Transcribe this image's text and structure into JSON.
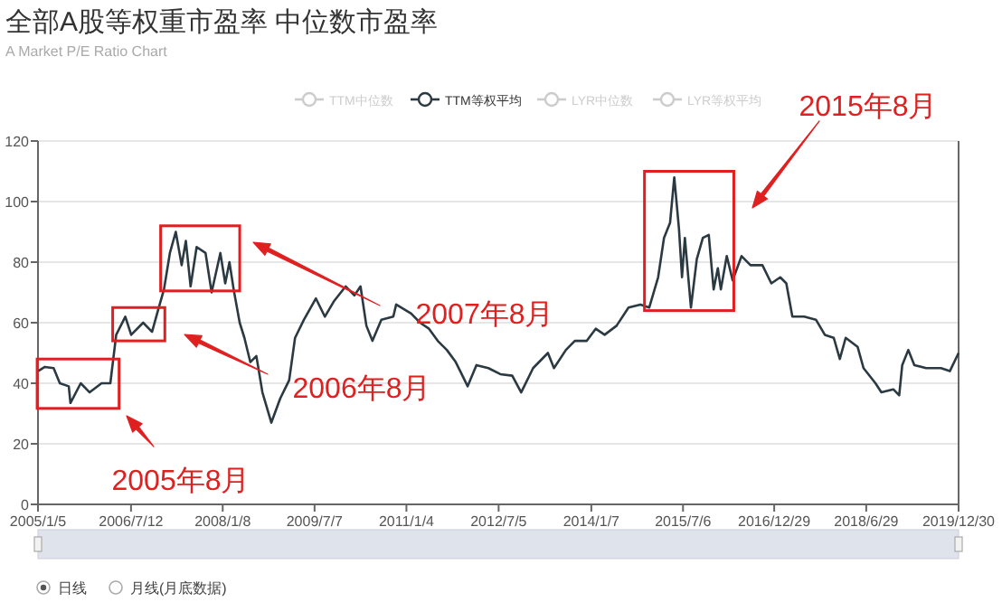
{
  "chart_data": {
    "type": "line",
    "title": "全部A股等权重市盈率 中位数市盈率",
    "subtitle": "A Market P/E Ratio Chart",
    "legend": "top",
    "marker": "none",
    "grid": "y",
    "xlim": [
      "2005-01-05",
      "2019-12-30"
    ],
    "xticks": [
      {
        "value": "2005-01-05",
        "label": "2005/1/5"
      },
      {
        "value": "2006-07-12",
        "label": "2006/7/12"
      },
      {
        "value": "2008-01-08",
        "label": "2008/1/8"
      },
      {
        "value": "2009-07-07",
        "label": "2009/7/7"
      },
      {
        "value": "2011-01-04",
        "label": "2011/1/4"
      },
      {
        "value": "2012-07-05",
        "label": "2012/7/5"
      },
      {
        "value": "2014-01-07",
        "label": "2014/1/7"
      },
      {
        "value": "2015-07-06",
        "label": "2015/7/6"
      },
      {
        "value": "2016-12-29",
        "label": "2016/12/29"
      },
      {
        "value": "2018-06-29",
        "label": "2018/6/29"
      },
      {
        "value": "2019-12-30",
        "label": "2019/12/30"
      }
    ],
    "ylim": [
      0,
      120
    ],
    "yticks": [
      0,
      20,
      40,
      60,
      80,
      100,
      120
    ],
    "series": [
      {
        "name": "TTM中位数",
        "color": "#cccccc"
      },
      {
        "name": "TTM等权平均",
        "color": "#2b3a42",
        "x": [
          "2005-01-05",
          "2005-02-15",
          "2005-04-08",
          "2005-05-15",
          "2005-07-07",
          "2005-07-17",
          "2005-09-16",
          "2005-11-08",
          "2006-01-18",
          "2006-03-11",
          "2006-04-15",
          "2006-06-08",
          "2006-07-13",
          "2006-09-22",
          "2006-11-14",
          "2006-12-19",
          "2007-01-24",
          "2007-02-28",
          "2007-04-04",
          "2007-05-09",
          "2007-06-03",
          "2007-07-01",
          "2007-08-06",
          "2007-09-28",
          "2007-11-03",
          "2007-12-25",
          "2008-01-23",
          "2008-02-17",
          "2008-03-13",
          "2008-04-18",
          "2008-05-16",
          "2008-06-20",
          "2008-07-26",
          "2008-08-31",
          "2008-10-23",
          "2008-12-15",
          "2009-02-06",
          "2009-03-13",
          "2009-05-05",
          "2009-07-15",
          "2009-09-06",
          "2009-10-29",
          "2010-01-08",
          "2010-03-01",
          "2010-04-06",
          "2010-05-11",
          "2010-06-16",
          "2010-08-08",
          "2010-10-18",
          "2010-11-04",
          "2011-02-01",
          "2011-03-26",
          "2011-05-18",
          "2011-07-09",
          "2011-09-01",
          "2011-10-24",
          "2012-01-03",
          "2012-02-24",
          "2012-05-05",
          "2012-07-15",
          "2012-09-24",
          "2012-11-16",
          "2013-01-26",
          "2013-04-24",
          "2013-05-30",
          "2013-08-09",
          "2013-10-01",
          "2013-12-11",
          "2014-02-02",
          "2014-03-27",
          "2014-06-06",
          "2014-08-16",
          "2014-10-26",
          "2014-12-17",
          "2015-02-08",
          "2015-03-15",
          "2015-04-20",
          "2015-05-15",
          "2015-06-12",
          "2015-06-30",
          "2015-07-17",
          "2015-08-22",
          "2015-09-26",
          "2015-11-01",
          "2015-12-06",
          "2016-01-04",
          "2016-01-29",
          "2016-02-16",
          "2016-03-22",
          "2016-04-26",
          "2016-06-18",
          "2016-08-10",
          "2016-10-20",
          "2016-12-12",
          "2017-02-03",
          "2017-03-11",
          "2017-04-16",
          "2017-06-25",
          "2017-09-03",
          "2017-10-26",
          "2017-12-18",
          "2018-01-23",
          "2018-02-27",
          "2018-05-09",
          "2018-06-13",
          "2018-08-23",
          "2018-09-27",
          "2018-12-07",
          "2019-01-11",
          "2019-01-29",
          "2019-03-06",
          "2019-04-11",
          "2019-06-20",
          "2019-09-16",
          "2019-11-08",
          "2019-12-30"
        ],
        "values": [
          44,
          45.4,
          45,
          40,
          39,
          33.5,
          40,
          37,
          40,
          40,
          56,
          62,
          56,
          60,
          57,
          64,
          71,
          83,
          90,
          79,
          87,
          72,
          85,
          83,
          70,
          83,
          73,
          80,
          71,
          60,
          55,
          47,
          49,
          37,
          27,
          35,
          41,
          55,
          61,
          68,
          62,
          67,
          72,
          69,
          72,
          59,
          54,
          61,
          62,
          66,
          63,
          60,
          58,
          54,
          51,
          47,
          39,
          46,
          45,
          43,
          42.5,
          37,
          45,
          50,
          45,
          51,
          54,
          54,
          58,
          56,
          59,
          65,
          66,
          65,
          75,
          88,
          93,
          108,
          91,
          75,
          88,
          65,
          81,
          88,
          89,
          71,
          78,
          71,
          82,
          74,
          82,
          79,
          79,
          73,
          75,
          73,
          62,
          62,
          61,
          56,
          55,
          48,
          55,
          52,
          45,
          40,
          37,
          38,
          36,
          46,
          51,
          46,
          45,
          45,
          44,
          50
        ]
      },
      {
        "name": "LYR中位数",
        "color": "#cccccc"
      },
      {
        "name": "LYR等权平均",
        "color": "#cccccc"
      }
    ],
    "annotations": [
      "2005年8月",
      "2006年8月",
      "2007年8月",
      "2015年8月",
      "日线",
      "月线(月底数据)"
    ]
  }
}
